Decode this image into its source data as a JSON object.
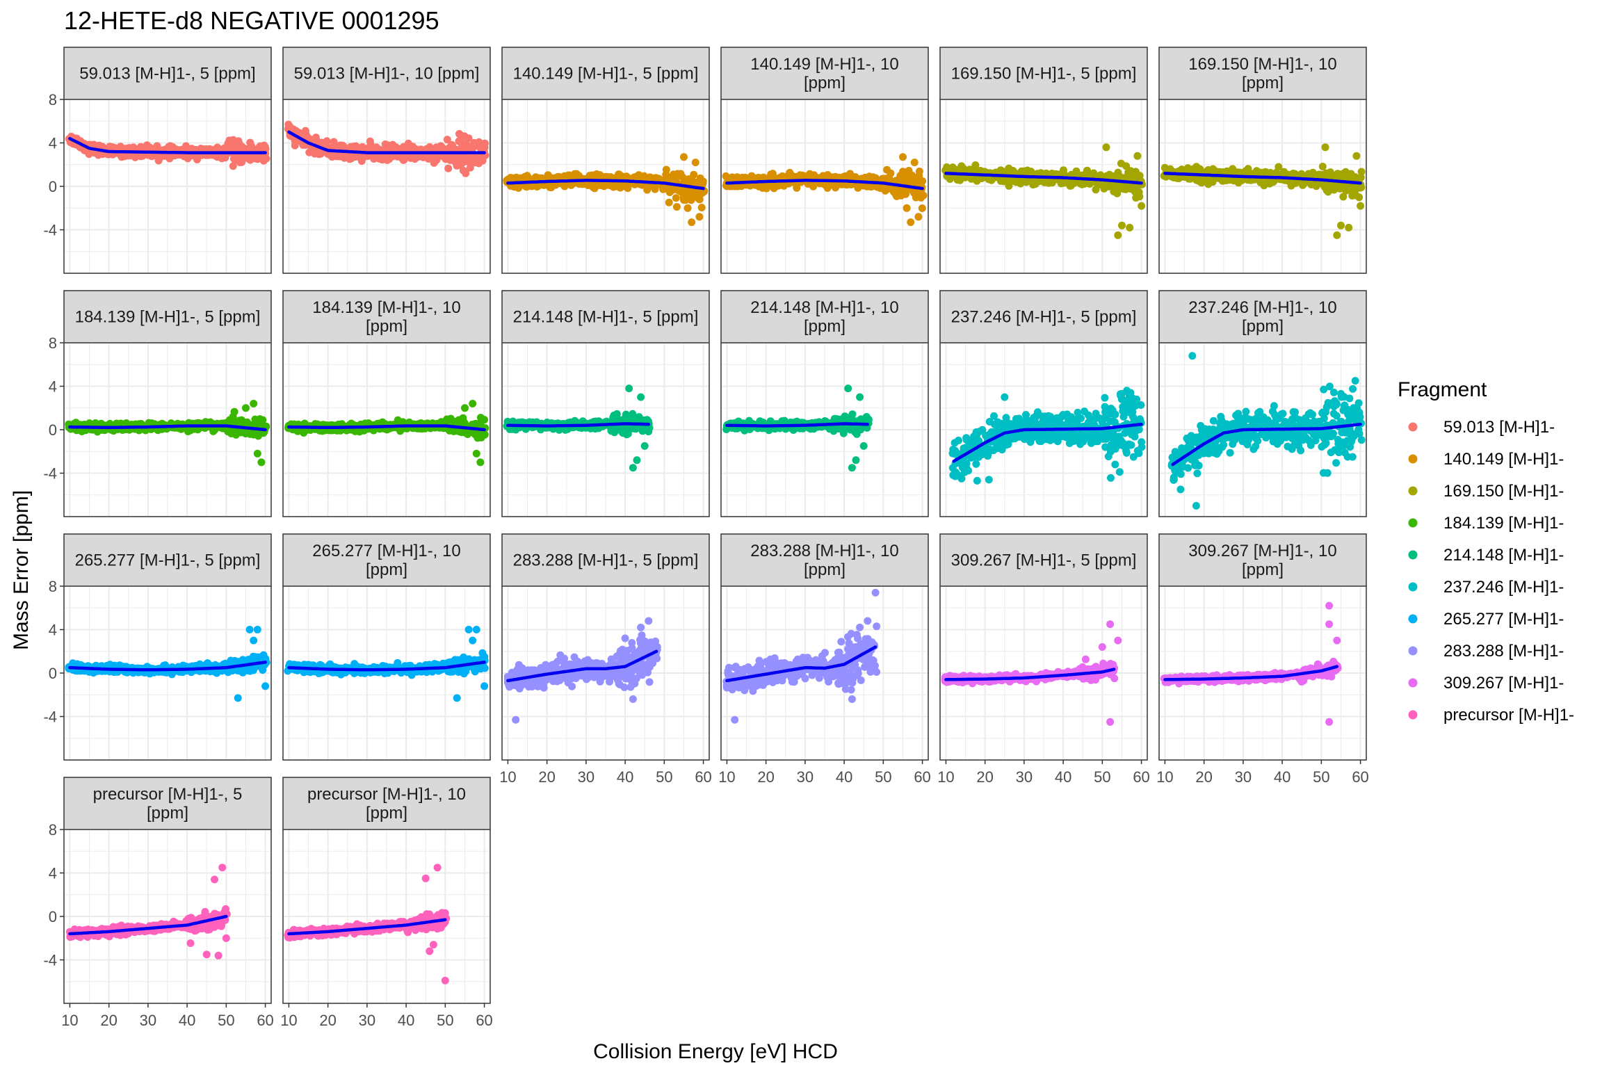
{
  "chart_data": {
    "type": "scatter",
    "title": "12-HETE-d8 NEGATIVE 0001295",
    "xlabel": "Collision Energy [eV] HCD",
    "ylabel": "Mass Error [ppm]",
    "xlim": [
      8.5,
      61.5
    ],
    "ylim": [
      -8,
      8
    ],
    "x_ticks": [
      10,
      20,
      30,
      40,
      50,
      60
    ],
    "y_ticks": [
      8,
      4,
      0,
      -4
    ],
    "grid": true,
    "fit_line_color": "#0000ee",
    "legend": {
      "title": "Fragment",
      "position": "right",
      "entries": [
        {
          "label": "59.013 [M-H]1-",
          "color": "#F8766D"
        },
        {
          "label": "140.149 [M-H]1-",
          "color": "#D89000"
        },
        {
          "label": "169.150 [M-H]1-",
          "color": "#A3A500"
        },
        {
          "label": "184.139 [M-H]1-",
          "color": "#39B600"
        },
        {
          "label": "214.148 [M-H]1-",
          "color": "#00BF7D"
        },
        {
          "label": "237.246 [M-H]1-",
          "color": "#00BFC4"
        },
        {
          "label": "265.277 [M-H]1-",
          "color": "#00B0F6"
        },
        {
          "label": "283.288 [M-H]1-",
          "color": "#9590FF"
        },
        {
          "label": "309.267 [M-H]1-",
          "color": "#E76BF3"
        },
        {
          "label": "precursor [M-H]1-",
          "color": "#FF62BC"
        }
      ]
    },
    "panels": [
      {
        "strip": [
          "59.013 [M-H]1-, 5 [ppm]"
        ],
        "color": "#F8766D",
        "x_range": [
          10,
          60
        ],
        "fit": [
          [
            10,
            4.4
          ],
          [
            15,
            3.5
          ],
          [
            20,
            3.2
          ],
          [
            30,
            3.15
          ],
          [
            40,
            3.1
          ],
          [
            50,
            3.1
          ],
          [
            60,
            3.1
          ]
        ],
        "spread": 0.4
      },
      {
        "strip": [
          "59.013 [M-H]1-, 10 [ppm]"
        ],
        "color": "#F8766D",
        "x_range": [
          10,
          60
        ],
        "fit": [
          [
            10,
            5.0
          ],
          [
            15,
            4.0
          ],
          [
            20,
            3.3
          ],
          [
            30,
            3.1
          ],
          [
            40,
            3.1
          ],
          [
            50,
            3.1
          ],
          [
            60,
            3.1
          ]
        ],
        "spread": 0.6
      },
      {
        "strip": [
          "140.149 [M-H]1-, 5 [ppm]"
        ],
        "color": "#D89000",
        "x_range": [
          10,
          60
        ],
        "fit": [
          [
            10,
            0.3
          ],
          [
            20,
            0.45
          ],
          [
            30,
            0.55
          ],
          [
            40,
            0.5
          ],
          [
            50,
            0.3
          ],
          [
            60,
            -0.2
          ]
        ],
        "spread": 0.5,
        "extra": [
          [
            55,
            2.7
          ],
          [
            57,
            -3.3
          ],
          [
            58,
            2.2
          ],
          [
            59,
            -2.8
          ],
          [
            56,
            -2.0
          ]
        ]
      },
      {
        "strip": [
          "140.149 [M-H]1-, 10",
          "[ppm]"
        ],
        "color": "#D89000",
        "x_range": [
          10,
          60
        ],
        "fit": [
          [
            10,
            0.3
          ],
          [
            20,
            0.45
          ],
          [
            30,
            0.55
          ],
          [
            40,
            0.5
          ],
          [
            50,
            0.3
          ],
          [
            60,
            -0.2
          ]
        ],
        "spread": 0.5,
        "extra": [
          [
            55,
            2.7
          ],
          [
            57,
            -3.3
          ],
          [
            58,
            2.2
          ],
          [
            59,
            -2.8
          ],
          [
            56,
            -2.0
          ]
        ]
      },
      {
        "strip": [
          "169.150 [M-H]1-, 5 [ppm]"
        ],
        "color": "#A3A500",
        "x_range": [
          10,
          60
        ],
        "fit": [
          [
            10,
            1.2
          ],
          [
            20,
            1.05
          ],
          [
            30,
            0.9
          ],
          [
            40,
            0.8
          ],
          [
            50,
            0.6
          ],
          [
            60,
            0.3
          ]
        ],
        "spread": 0.5,
        "extra": [
          [
            51,
            3.6
          ],
          [
            54,
            -4.5
          ],
          [
            57,
            -3.8
          ],
          [
            59,
            2.8
          ],
          [
            60,
            -1.8
          ],
          [
            55,
            -3.6
          ]
        ]
      },
      {
        "strip": [
          "169.150 [M-H]1-, 10",
          "[ppm]"
        ],
        "color": "#A3A500",
        "x_range": [
          10,
          60
        ],
        "fit": [
          [
            10,
            1.2
          ],
          [
            20,
            1.05
          ],
          [
            30,
            0.9
          ],
          [
            40,
            0.8
          ],
          [
            50,
            0.6
          ],
          [
            60,
            0.3
          ]
        ],
        "spread": 0.5,
        "extra": [
          [
            51,
            3.6
          ],
          [
            54,
            -4.5
          ],
          [
            57,
            -3.8
          ],
          [
            59,
            2.8
          ],
          [
            60,
            -1.8
          ],
          [
            55,
            -3.6
          ]
        ]
      },
      {
        "strip": [
          "184.139 [M-H]1-, 5 [ppm]"
        ],
        "color": "#39B600",
        "x_range": [
          10,
          60
        ],
        "fit": [
          [
            10,
            0.25
          ],
          [
            20,
            0.2
          ],
          [
            30,
            0.25
          ],
          [
            40,
            0.35
          ],
          [
            50,
            0.35
          ],
          [
            60,
            0.0
          ]
        ],
        "spread": 0.3,
        "extra": [
          [
            57,
            2.4
          ],
          [
            59,
            -3.0
          ],
          [
            58,
            -2.2
          ],
          [
            55,
            2.0
          ]
        ]
      },
      {
        "strip": [
          "184.139 [M-H]1-, 10",
          "[ppm]"
        ],
        "color": "#39B600",
        "x_range": [
          10,
          60
        ],
        "fit": [
          [
            10,
            0.25
          ],
          [
            20,
            0.2
          ],
          [
            30,
            0.25
          ],
          [
            40,
            0.35
          ],
          [
            50,
            0.35
          ],
          [
            60,
            0.0
          ]
        ],
        "spread": 0.3,
        "extra": [
          [
            57,
            2.4
          ],
          [
            59,
            -3.0
          ],
          [
            58,
            -2.2
          ],
          [
            55,
            2.0
          ]
        ]
      },
      {
        "strip": [
          "214.148 [M-H]1-, 5 [ppm]"
        ],
        "color": "#00BF7D",
        "x_range": [
          10,
          46
        ],
        "fit": [
          [
            10,
            0.4
          ],
          [
            20,
            0.35
          ],
          [
            30,
            0.4
          ],
          [
            40,
            0.55
          ],
          [
            46,
            0.5
          ]
        ],
        "spread": 0.3,
        "extra": [
          [
            41,
            3.8
          ],
          [
            42,
            -3.5
          ],
          [
            44,
            3.0
          ],
          [
            45,
            -1.5
          ],
          [
            43,
            -2.8
          ]
        ]
      },
      {
        "strip": [
          "214.148 [M-H]1-, 10",
          "[ppm]"
        ],
        "color": "#00BF7D",
        "x_range": [
          10,
          46
        ],
        "fit": [
          [
            10,
            0.4
          ],
          [
            20,
            0.35
          ],
          [
            30,
            0.4
          ],
          [
            40,
            0.55
          ],
          [
            46,
            0.5
          ]
        ],
        "spread": 0.3,
        "extra": [
          [
            41,
            3.8
          ],
          [
            42,
            -3.5
          ],
          [
            44,
            3.0
          ],
          [
            45,
            -1.5
          ],
          [
            43,
            -2.8
          ]
        ]
      },
      {
        "strip": [
          "237.246 [M-H]1-, 5 [ppm]"
        ],
        "color": "#00BFC4",
        "x_range": [
          12,
          60
        ],
        "fit": [
          [
            12,
            -2.9
          ],
          [
            20,
            -1.2
          ],
          [
            25,
            -0.3
          ],
          [
            30,
            0.0
          ],
          [
            40,
            0.05
          ],
          [
            50,
            0.1
          ],
          [
            60,
            0.5
          ]
        ],
        "spread": 1.3,
        "extra": [
          [
            14,
            -4.5
          ],
          [
            18,
            -4.7
          ],
          [
            21,
            -4.6
          ],
          [
            25,
            3.0
          ],
          [
            55,
            3.3
          ],
          [
            58,
            -2.5
          ]
        ]
      },
      {
        "strip": [
          "237.246 [M-H]1-, 10",
          "[ppm]"
        ],
        "color": "#00BFC4",
        "x_range": [
          12,
          60
        ],
        "fit": [
          [
            12,
            -3.2
          ],
          [
            20,
            -1.3
          ],
          [
            25,
            -0.3
          ],
          [
            30,
            0.0
          ],
          [
            40,
            0.05
          ],
          [
            50,
            0.1
          ],
          [
            60,
            0.5
          ]
        ],
        "spread": 1.4,
        "extra": [
          [
            17,
            6.8
          ],
          [
            18,
            -7.0
          ],
          [
            14,
            -5.5
          ],
          [
            55,
            3.3
          ],
          [
            58,
            -2.5
          ]
        ]
      },
      {
        "strip": [
          "265.277 [M-H]1-, 5 [ppm]"
        ],
        "color": "#00B0F6",
        "x_range": [
          10,
          60
        ],
        "fit": [
          [
            10,
            0.5
          ],
          [
            20,
            0.35
          ],
          [
            30,
            0.3
          ],
          [
            40,
            0.35
          ],
          [
            50,
            0.5
          ],
          [
            60,
            1.0
          ]
        ],
        "spread": 0.3,
        "extra": [
          [
            53,
            -2.3
          ],
          [
            56,
            4.0
          ],
          [
            58,
            4.0
          ],
          [
            60,
            -1.2
          ],
          [
            57,
            3.0
          ]
        ]
      },
      {
        "strip": [
          "265.277 [M-H]1-, 10",
          "[ppm]"
        ],
        "color": "#00B0F6",
        "x_range": [
          10,
          60
        ],
        "fit": [
          [
            10,
            0.5
          ],
          [
            20,
            0.35
          ],
          [
            30,
            0.3
          ],
          [
            40,
            0.35
          ],
          [
            50,
            0.5
          ],
          [
            60,
            1.0
          ]
        ],
        "spread": 0.3,
        "extra": [
          [
            53,
            -2.3
          ],
          [
            56,
            4.0
          ],
          [
            58,
            4.0
          ],
          [
            60,
            -1.2
          ],
          [
            57,
            3.0
          ]
        ]
      },
      {
        "strip": [
          "283.288 [M-H]1-, 5 [ppm]"
        ],
        "color": "#9590FF",
        "x_range": [
          10,
          48
        ],
        "fit": [
          [
            10,
            -0.7
          ],
          [
            20,
            -0.1
          ],
          [
            30,
            0.4
          ],
          [
            35,
            0.4
          ],
          [
            40,
            0.6
          ],
          [
            48,
            2.0
          ]
        ],
        "spread": 0.9,
        "extra": [
          [
            12,
            -4.3
          ],
          [
            46,
            4.8
          ],
          [
            44,
            4.2
          ],
          [
            40,
            3.2
          ],
          [
            42,
            -2.4
          ],
          [
            36,
            -0.8
          ]
        ]
      },
      {
        "strip": [
          "283.288 [M-H]1-, 10",
          "[ppm]"
        ],
        "color": "#9590FF",
        "x_range": [
          10,
          48
        ],
        "fit": [
          [
            10,
            -0.7
          ],
          [
            20,
            -0.1
          ],
          [
            30,
            0.5
          ],
          [
            35,
            0.45
          ],
          [
            40,
            0.8
          ],
          [
            48,
            2.4
          ]
        ],
        "spread": 0.9,
        "extra": [
          [
            12,
            -4.3
          ],
          [
            48,
            7.4
          ],
          [
            46,
            4.8
          ],
          [
            44,
            4.2
          ],
          [
            42,
            -2.4
          ],
          [
            36,
            -0.8
          ]
        ]
      },
      {
        "strip": [
          "309.267 [M-H]1-, 5 [ppm]"
        ],
        "color": "#E76BF3",
        "x_range": [
          10,
          53
        ],
        "fit": [
          [
            10,
            -0.6
          ],
          [
            20,
            -0.55
          ],
          [
            30,
            -0.45
          ],
          [
            40,
            -0.2
          ],
          [
            50,
            0.1
          ],
          [
            53,
            0.35
          ]
        ],
        "spread": 0.25,
        "extra": [
          [
            52,
            4.5
          ],
          [
            52,
            -4.5
          ],
          [
            54,
            3.0
          ],
          [
            50,
            2.4
          ]
        ]
      },
      {
        "strip": [
          "309.267 [M-H]1-, 10",
          "[ppm]"
        ],
        "color": "#E76BF3",
        "x_range": [
          10,
          54
        ],
        "fit": [
          [
            10,
            -0.6
          ],
          [
            20,
            -0.55
          ],
          [
            30,
            -0.45
          ],
          [
            40,
            -0.3
          ],
          [
            50,
            0.2
          ],
          [
            54,
            0.6
          ]
        ],
        "spread": 0.25,
        "extra": [
          [
            52,
            6.2
          ],
          [
            52,
            -4.5
          ],
          [
            52,
            4.5
          ],
          [
            54,
            3.0
          ]
        ]
      },
      {
        "strip": [
          "precursor [M-H]1-, 5",
          "[ppm]"
        ],
        "color": "#FF62BC",
        "x_range": [
          10,
          50
        ],
        "fit": [
          [
            10,
            -1.6
          ],
          [
            20,
            -1.4
          ],
          [
            30,
            -1.1
          ],
          [
            40,
            -0.8
          ],
          [
            50,
            0.0
          ]
        ],
        "spread": 0.3,
        "extra": [
          [
            49,
            4.5
          ],
          [
            45,
            -3.5
          ],
          [
            48,
            -3.6
          ],
          [
            50,
            -2.0
          ],
          [
            47,
            3.4
          ]
        ]
      },
      {
        "strip": [
          "precursor [M-H]1-, 10",
          "[ppm]"
        ],
        "color": "#FF62BC",
        "x_range": [
          10,
          50
        ],
        "fit": [
          [
            10,
            -1.6
          ],
          [
            20,
            -1.4
          ],
          [
            30,
            -1.1
          ],
          [
            40,
            -0.8
          ],
          [
            50,
            -0.3
          ]
        ],
        "spread": 0.3,
        "extra": [
          [
            48,
            4.5
          ],
          [
            50,
            -5.9
          ],
          [
            45,
            3.5
          ],
          [
            46,
            -3.2
          ],
          [
            47,
            -2.6
          ]
        ]
      }
    ]
  }
}
